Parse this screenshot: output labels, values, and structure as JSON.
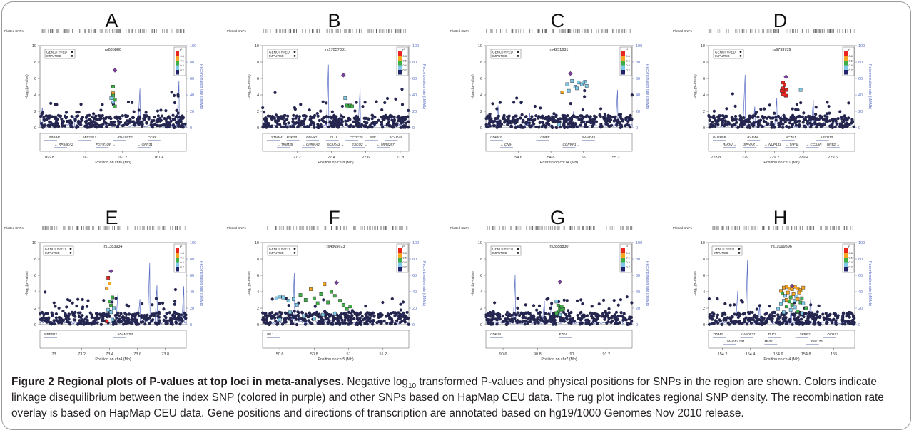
{
  "figure": {
    "caption_title": "Figure 2 Regional plots of P-values at top loci in meta-analyses.",
    "caption_body_1": " Negative log",
    "caption_sub": "10",
    "caption_body_2": " transformed P-values and physical positions for SNPs in the region are shown. Colors indicate linkage disequilibrium between the index SNP (colored in purple) and other SNPs based on HapMap CEU data. The rug plot indicates regional SNP density. The recombination rate overlay is based on HapMap CEU data. Gene positions and directions of transcription are annotated based on hg19/1000 Genomes Nov 2010 release."
  },
  "common": {
    "rug_label": "Plotted SNPs",
    "ylabel_left": "−log₁₀(p−value)",
    "ylabel_right": "Recombination rate (cM/Mb)",
    "legend_genotyped": "GENOTYPED",
    "legend_imputed": "IMPUTED",
    "r2_label": "r²",
    "r2_ticks": [
      "0.8",
      "0.6",
      "0.4",
      "0.2"
    ],
    "r2_colors": [
      "#e8251f",
      "#f5a623",
      "#3fae49",
      "#7fc8e8",
      "#24246b"
    ],
    "index_color": "#7b3f9e",
    "background_color": "#24264f",
    "recomb_color": "#5b6fc4",
    "yticks_left": [
      "0",
      "2",
      "4",
      "6",
      "8",
      "10"
    ],
    "yticks_right": [
      "0",
      "20",
      "40",
      "60",
      "80",
      "100"
    ]
  },
  "chart_data": [
    {
      "type": "scatter",
      "panel": "A",
      "snp": "rs635880",
      "xlabel": "Position on chr6 (Mb)",
      "xticks": [
        "166.8",
        "167",
        "167.2",
        "167.4"
      ],
      "xrange": [
        166.75,
        167.55
      ],
      "ylim": [
        0,
        10
      ],
      "index_snp": {
        "x": 167.16,
        "y": 7.0
      },
      "highlight": [
        [
          167.15,
          5.0,
          2
        ],
        [
          167.15,
          4.2,
          1
        ],
        [
          167.15,
          3.9,
          2
        ],
        [
          167.14,
          3.6,
          3
        ],
        [
          167.16,
          3.4,
          2
        ],
        [
          167.15,
          3.1,
          3
        ],
        [
          167.16,
          2.6,
          2
        ]
      ],
      "genes_row1": [
        "← BRP44L",
        "← MIR1913",
        "← RNASET2",
        "CCR6 →"
      ],
      "genes_row2": [
        "← RPS6KA2",
        "FGFR1OP →",
        "← GPR31"
      ]
    },
    {
      "type": "scatter",
      "panel": "B",
      "snp": "rs17057381",
      "xlabel": "Position on chr8 (Mb)",
      "xticks": [
        "27.2",
        "27.4",
        "27.6",
        "27.8"
      ],
      "xrange": [
        27.0,
        27.85
      ],
      "ylim": [
        0,
        10
      ],
      "index_snp": {
        "x": 27.47,
        "y": 6.4
      },
      "highlight": [
        [
          27.48,
          3.6,
          3
        ],
        [
          27.49,
          2.7,
          2
        ],
        [
          27.5,
          2.6,
          2
        ],
        [
          27.51,
          2.7,
          2
        ],
        [
          27.52,
          2.6,
          2
        ]
      ],
      "genes_row1": [
        "← STMN4",
        "PTK2B →",
        "EPHX2 →",
        "← CLU",
        "← CCDC25",
        "← PBK",
        "← SCARA5"
      ],
      "genes_row2": [
        "← TRIM35",
        "← CHRNA2",
        "SCARA3 →",
        "ESCO2 →",
        "← MIR4287"
      ]
    },
    {
      "type": "scatter",
      "panel": "C",
      "snp": "rs4251631",
      "xlabel": "Position on chr14 (Mb)",
      "xticks": [
        "54.6",
        "54.8",
        "55",
        "55.2"
      ],
      "xrange": [
        54.4,
        55.3
      ],
      "ylim": [
        0,
        10
      ],
      "index_snp": {
        "x": 54.92,
        "y": 6.6
      },
      "highlight": [
        [
          54.87,
          4.3,
          1
        ],
        [
          54.9,
          5.3,
          3
        ],
        [
          54.93,
          5.7,
          3
        ],
        [
          54.95,
          5.0,
          3
        ],
        [
          54.97,
          5.5,
          3
        ],
        [
          54.99,
          5.3,
          3
        ],
        [
          55.01,
          5.6,
          3
        ],
        [
          55.02,
          5.1,
          3
        ],
        [
          54.91,
          4.5,
          3
        ],
        [
          54.96,
          4.8,
          3
        ],
        [
          55.0,
          5.5,
          3
        ],
        [
          54.85,
          0.4,
          3
        ]
      ],
      "genes_row1": [
        "CDKN3 →",
        "← GMFB",
        "SAMD4A →"
      ],
      "genes_row2": [
        "← CNIH",
        "CGRRF1 →"
      ]
    },
    {
      "type": "scatter",
      "panel": "D",
      "snp": "rs9793739",
      "xlabel": "Position on chr1 (Mb)",
      "xticks": [
        "228.8",
        "229",
        "229.2",
        "229.4",
        "229.6"
      ],
      "xrange": [
        228.75,
        229.75
      ],
      "ylim": [
        0,
        10
      ],
      "index_snp": {
        "x": 229.28,
        "y": 6.2
      },
      "highlight": [
        [
          229.26,
          5.5,
          0
        ],
        [
          229.27,
          5.2,
          0
        ],
        [
          229.26,
          4.8,
          0
        ],
        [
          229.28,
          4.6,
          0
        ],
        [
          229.27,
          4.4,
          0
        ],
        [
          229.26,
          4.1,
          0
        ],
        [
          229.28,
          3.9,
          0
        ],
        [
          229.27,
          4.0,
          0
        ],
        [
          229.38,
          4.6,
          3
        ],
        [
          229.25,
          4.5,
          0
        ]
      ],
      "genes_row1": [
        "DUSP5P →",
        "RAB4A →",
        "← ACTA1",
        "← ABCB10"
      ],
      "genes_row2": [
        "RHOU →",
        "SPHAR →",
        "← NUP133",
        "← TAF5L",
        "← CCSAP",
        "URB2 →"
      ]
    },
    {
      "type": "scatter",
      "panel": "E",
      "snp": "rs1383934",
      "xlabel": "Position on chr4 (Mb)",
      "xticks": [
        "73",
        "73.2",
        "73.4",
        "73.6",
        "73.8"
      ],
      "xrange": [
        72.9,
        73.95
      ],
      "ylim": [
        0,
        10
      ],
      "index_snp": {
        "x": 73.41,
        "y": 6.5
      },
      "highlight": [
        [
          73.39,
          5.7,
          0
        ],
        [
          73.4,
          5.0,
          1
        ],
        [
          73.38,
          4.4,
          1
        ],
        [
          73.42,
          3.3,
          2
        ],
        [
          73.4,
          2.8,
          2
        ],
        [
          73.41,
          2.3,
          2
        ],
        [
          73.43,
          2.0,
          3
        ],
        [
          73.39,
          1.8,
          3
        ],
        [
          73.41,
          1.5,
          3
        ],
        [
          73.38,
          0.4,
          0
        ],
        [
          73.42,
          0.6,
          3
        ]
      ],
      "genes_row1": [
        "NPFFR2 →",
        "← ADAMTS3"
      ],
      "genes_row2": []
    },
    {
      "type": "scatter",
      "panel": "F",
      "snp": "rs4865673",
      "xlabel": "Position on chr5 (Mb)",
      "xticks": [
        "50.6",
        "50.8",
        "51",
        "51.2"
      ],
      "xrange": [
        50.5,
        51.35
      ],
      "ylim": [
        0,
        10
      ],
      "index_snp": {
        "x": 50.93,
        "y": 5.1
      },
      "highlight": [
        [
          50.58,
          3.2,
          3
        ],
        [
          50.6,
          3.4,
          3
        ],
        [
          50.62,
          3.3,
          3
        ],
        [
          50.65,
          2.9,
          3
        ],
        [
          50.68,
          3.1,
          3
        ],
        [
          50.7,
          2.4,
          3
        ],
        [
          50.72,
          3.6,
          2
        ],
        [
          50.75,
          3.0,
          2
        ],
        [
          50.78,
          4.3,
          1
        ],
        [
          50.8,
          3.2,
          2
        ],
        [
          50.82,
          2.6,
          2
        ],
        [
          50.84,
          3.7,
          2
        ],
        [
          50.86,
          4.9,
          1
        ],
        [
          50.88,
          2.7,
          2
        ],
        [
          50.9,
          4.0,
          2
        ],
        [
          50.92,
          3.5,
          2
        ],
        [
          50.95,
          2.9,
          2
        ],
        [
          50.97,
          2.4,
          2
        ],
        [
          50.99,
          1.9,
          2
        ],
        [
          51.01,
          2.2,
          2
        ],
        [
          50.66,
          1.5,
          3
        ],
        [
          50.74,
          1.0,
          3
        ],
        [
          50.85,
          1.2,
          3
        ],
        [
          50.92,
          1.3,
          3
        ],
        [
          50.8,
          0.7,
          3
        ],
        [
          50.6,
          0.6,
          3
        ]
      ],
      "genes_row1": [
        "ISL1 →"
      ],
      "genes_row2": []
    },
    {
      "type": "scatter",
      "panel": "G",
      "snp": "rs2888830",
      "xlabel": "Position on chr7 (Mb)",
      "xticks": [
        "90.6",
        "90.8",
        "91",
        "91.2"
      ],
      "xrange": [
        90.5,
        91.35
      ],
      "ylim": [
        0,
        10
      ],
      "index_snp": {
        "x": 90.93,
        "y": 5.2
      },
      "highlight": [
        [
          90.91,
          2.8,
          3
        ],
        [
          90.92,
          2.3,
          2
        ],
        [
          90.93,
          2.0,
          2
        ],
        [
          90.94,
          1.8,
          2
        ],
        [
          90.92,
          1.6,
          2
        ],
        [
          90.95,
          1.9,
          2
        ],
        [
          90.91,
          1.4,
          2
        ],
        [
          90.93,
          1.2,
          3
        ],
        [
          90.94,
          2.2,
          2
        ]
      ],
      "genes_row1": [
        "CDK14 →",
        "FZD1 →"
      ],
      "genes_row2": []
    },
    {
      "type": "scatter",
      "panel": "H",
      "snp": "rs11099896",
      "xlabel": "Position on chr4 (Mb)",
      "xticks": [
        "154.2",
        "154.4",
        "154.6",
        "154.8",
        "155"
      ],
      "xrange": [
        154.1,
        155.15
      ],
      "ylim": [
        0,
        10
      ],
      "index_snp": {
        "x": 154.7,
        "y": 4.7
      },
      "highlight": [
        [
          154.62,
          4.1,
          1
        ],
        [
          154.64,
          4.5,
          1
        ],
        [
          154.66,
          4.6,
          1
        ],
        [
          154.68,
          4.4,
          1
        ],
        [
          154.7,
          4.3,
          1
        ],
        [
          154.72,
          4.6,
          1
        ],
        [
          154.74,
          4.4,
          1
        ],
        [
          154.76,
          4.2,
          1
        ],
        [
          154.78,
          4.5,
          1
        ],
        [
          154.63,
          3.8,
          2
        ],
        [
          154.65,
          3.5,
          3
        ],
        [
          154.67,
          3.9,
          1
        ],
        [
          154.69,
          3.3,
          2
        ],
        [
          154.71,
          3.7,
          1
        ],
        [
          154.73,
          3.4,
          3
        ],
        [
          154.75,
          3.9,
          1
        ],
        [
          154.77,
          3.2,
          2
        ],
        [
          154.64,
          2.9,
          3
        ],
        [
          154.66,
          3.0,
          1
        ],
        [
          154.68,
          2.8,
          2
        ],
        [
          154.72,
          2.9,
          3
        ],
        [
          154.74,
          3.1,
          1
        ],
        [
          154.76,
          2.7,
          2
        ],
        [
          154.62,
          2.5,
          3
        ],
        [
          154.7,
          2.4,
          2
        ],
        [
          154.78,
          2.6,
          3
        ],
        [
          154.66,
          2.2,
          2
        ],
        [
          154.72,
          2.1,
          3
        ],
        [
          154.6,
          1.9,
          3
        ],
        [
          154.8,
          2.0,
          2
        ],
        [
          154.69,
          1.8,
          3
        ],
        [
          154.74,
          1.6,
          2
        ],
        [
          154.64,
          1.5,
          3
        ],
        [
          154.77,
          1.4,
          3
        ]
      ],
      "genes_row1": [
        "TRIM2 →",
        "KIAA0922 →",
        "TLR2 →",
        "← SFRP2",
        "← DCHS2"
      ],
      "genes_row2": [
        "← MAGEA1P1",
        "MND1 →",
        "← RNF175"
      ]
    }
  ]
}
